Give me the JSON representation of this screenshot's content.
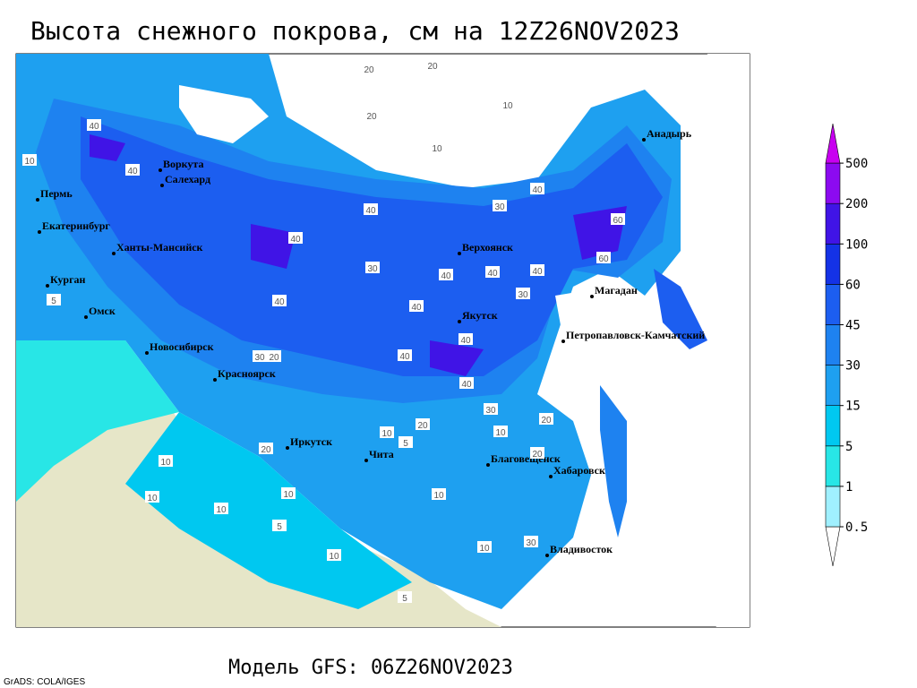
{
  "title": "Высота снежного покрова, см на 12Z26NOV2023",
  "subtitle": "Модель GFS: 06Z26NOV2023",
  "credit": "GrADS: COLA/IGES",
  "cities": [
    "Анадырь",
    "Воркута",
    "Салехард",
    "Пермь",
    "Екатеринбург",
    "Ханты-Мансийск",
    "Курган",
    "Омск",
    "Новосибирск",
    "Красноярск",
    "Иркутск",
    "Чита",
    "Верхоянск",
    "Якутск",
    "Магадан",
    "Петропавловск-Камчатский",
    "Благовещенск",
    "Хабаровск",
    "Владивосток"
  ],
  "legend": {
    "levels": [
      0.5,
      1,
      5,
      15,
      30,
      45,
      60,
      100,
      200,
      500
    ],
    "colors": [
      "#ffffff",
      "#a0f0ff",
      "#28e6e6",
      "#00c8f0",
      "#1ea0f0",
      "#1e82f0",
      "#1c5ef0",
      "#1432e6",
      "#4014e6",
      "#8c0af0",
      "#c800f0"
    ]
  },
  "contour_labels": [
    20,
    20,
    10,
    20,
    10,
    40,
    10,
    40,
    40,
    30,
    40,
    40,
    30,
    40,
    40,
    40,
    60,
    60,
    30,
    40,
    40,
    40,
    40,
    40,
    30,
    20,
    30,
    20,
    20,
    10,
    10,
    5,
    20,
    10,
    10,
    5,
    10,
    30,
    10,
    5,
    10,
    10,
    5,
    10,
    20
  ]
}
